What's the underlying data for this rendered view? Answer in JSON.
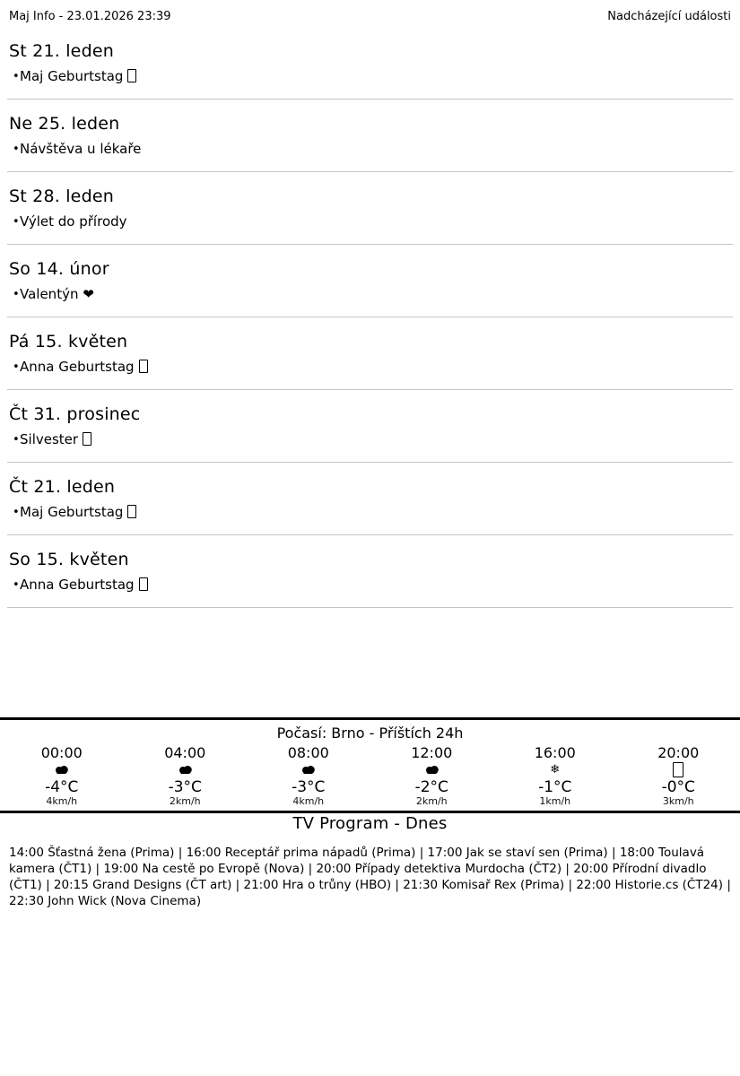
{
  "header": {
    "left": "Maj Info - 23.01.2026 23:39",
    "right": "Nadcházející události"
  },
  "events": [
    {
      "date": "St 21. leden",
      "items": [
        {
          "text": "Maj Geburtstag",
          "missing_glyph": true
        }
      ]
    },
    {
      "date": "Ne 25. leden",
      "items": [
        {
          "text": "Návštěva u lékaře",
          "missing_glyph": false
        }
      ]
    },
    {
      "date": "St 28. leden",
      "items": [
        {
          "text": "Výlet do přírody",
          "missing_glyph": false
        }
      ]
    },
    {
      "date": "So 14. únor",
      "items": [
        {
          "text": "Valentýn ❤",
          "missing_glyph": false
        }
      ]
    },
    {
      "date": "Pá 15. květen",
      "items": [
        {
          "text": "Anna Geburtstag",
          "missing_glyph": true
        }
      ]
    },
    {
      "date": "Čt 31. prosinec",
      "items": [
        {
          "text": "Silvester",
          "missing_glyph": true
        }
      ]
    },
    {
      "date": "Čt 21. leden",
      "items": [
        {
          "text": "Maj Geburtstag",
          "missing_glyph": true
        }
      ]
    },
    {
      "date": "So 15. květen",
      "items": [
        {
          "text": "Anna Geburtstag",
          "missing_glyph": true
        }
      ]
    }
  ],
  "weather": {
    "title": "Počasí: Brno - Příštích 24h",
    "snowflake_glyph": "❄",
    "columns": [
      {
        "time": "00:00",
        "icon": "cloud-icon",
        "temp": "-4°C",
        "wind": "4km/h"
      },
      {
        "time": "04:00",
        "icon": "cloud-icon",
        "temp": "-3°C",
        "wind": "2km/h"
      },
      {
        "time": "08:00",
        "icon": "cloud-icon",
        "temp": "-3°C",
        "wind": "4km/h"
      },
      {
        "time": "12:00",
        "icon": "cloud-icon",
        "temp": "-2°C",
        "wind": "2km/h"
      },
      {
        "time": "16:00",
        "icon": "snowflake-icon",
        "temp": "-1°C",
        "wind": "1km/h"
      },
      {
        "time": "20:00",
        "icon": "missing-glyph-icon",
        "temp": "-0°C",
        "wind": "3km/h"
      }
    ]
  },
  "tv": {
    "title": "TV Program - Dnes",
    "listing": "14:00 Šťastná žena (Prima) | 16:00 Receptář prima nápadů (Prima) | 17:00 Jak se staví sen (Prima) | 18:00 Toulavá kamera (ČT1) | 19:00 Na cestě po Evropě (Nova) | 20:00 Případy detektiva Murdocha (ČT2) | 20:00 Přírodní divadlo (ČT1) | 20:15 Grand Designs (ČT art) | 21:00 Hra o trůny (HBO) | 21:30 Komisař Rex (Prima) | 22:00 Historie.cs (ČT24) | 22:30 John Wick (Nova Cinema)"
  },
  "colors": {
    "text": "#000000",
    "divider": "#c4c4c4",
    "rule": "#000000",
    "background": "#ffffff"
  }
}
